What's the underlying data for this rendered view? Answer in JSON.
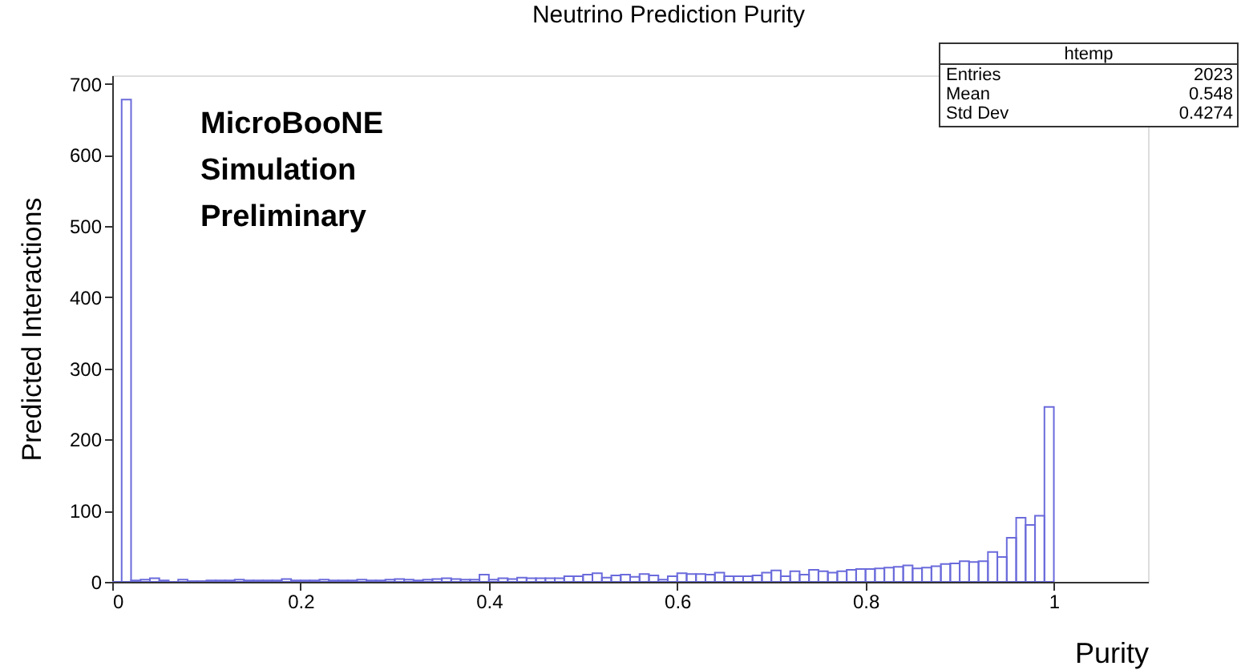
{
  "chart_data": {
    "type": "histogram",
    "title": "Neutrino Prediction Purity",
    "xlabel": "Purity",
    "ylabel": "Predicted Interactions",
    "bins": [
      0,
      0.01,
      0.02,
      0.03,
      0.04,
      0.05,
      0.06,
      0.07,
      0.08,
      0.09,
      0.1,
      0.11,
      0.12,
      0.13,
      0.14,
      0.15,
      0.16,
      0.17,
      0.18,
      0.19,
      0.2,
      0.21,
      0.22,
      0.23,
      0.24,
      0.25,
      0.26,
      0.27,
      0.28,
      0.29,
      0.3,
      0.31,
      0.32,
      0.33,
      0.34,
      0.35,
      0.36,
      0.37,
      0.38,
      0.39,
      0.4,
      0.41,
      0.42,
      0.43,
      0.44,
      0.45,
      0.46,
      0.47,
      0.48,
      0.49,
      0.5,
      0.51,
      0.52,
      0.53,
      0.54,
      0.55,
      0.56,
      0.57,
      0.58,
      0.59,
      0.6,
      0.61,
      0.62,
      0.63,
      0.64,
      0.65,
      0.66,
      0.67,
      0.68,
      0.69,
      0.7,
      0.71,
      0.72,
      0.73,
      0.74,
      0.75,
      0.76,
      0.77,
      0.78,
      0.79,
      0.8,
      0.81,
      0.82,
      0.83,
      0.84,
      0.85,
      0.86,
      0.87,
      0.88,
      0.89,
      0.9,
      0.91,
      0.92,
      0.93,
      0.94,
      0.95,
      0.96,
      0.97,
      0.98,
      0.99,
      1.0
    ],
    "values": [
      0,
      678,
      2,
      3,
      5,
      2,
      0,
      3,
      1,
      1,
      2,
      2,
      2,
      3,
      2,
      2,
      2,
      2,
      4,
      2,
      2,
      2,
      3,
      2,
      2,
      2,
      3,
      2,
      2,
      3,
      4,
      3,
      2,
      3,
      4,
      5,
      4,
      3,
      3,
      10,
      3,
      5,
      4,
      6,
      5,
      5,
      5,
      5,
      8,
      8,
      10,
      12,
      6,
      9,
      10,
      7,
      11,
      9,
      3,
      8,
      12,
      11,
      11,
      10,
      13,
      8,
      8,
      8,
      9,
      13,
      16,
      8,
      15,
      10,
      17,
      15,
      13,
      15,
      17,
      18,
      18,
      19,
      20,
      21,
      23,
      19,
      20,
      22,
      25,
      26,
      29,
      28,
      29,
      42,
      35,
      62,
      90,
      80,
      93,
      246
    ],
    "color": "#6b6bdc",
    "xlim": [
      0,
      1.1
    ],
    "xticks": [
      0,
      0.2,
      0.4,
      0.6,
      0.8,
      1
    ],
    "ylim": [
      0,
      712
    ],
    "yticks": [
      0,
      100,
      200,
      300,
      400,
      500,
      600,
      700
    ],
    "grid": false,
    "annotations": [
      "MicroBooNE",
      "Simulation",
      "Preliminary",
      "htemp",
      "Entries",
      "2023",
      "Mean",
      "0.548",
      "Std Dev",
      "0.4274"
    ]
  }
}
